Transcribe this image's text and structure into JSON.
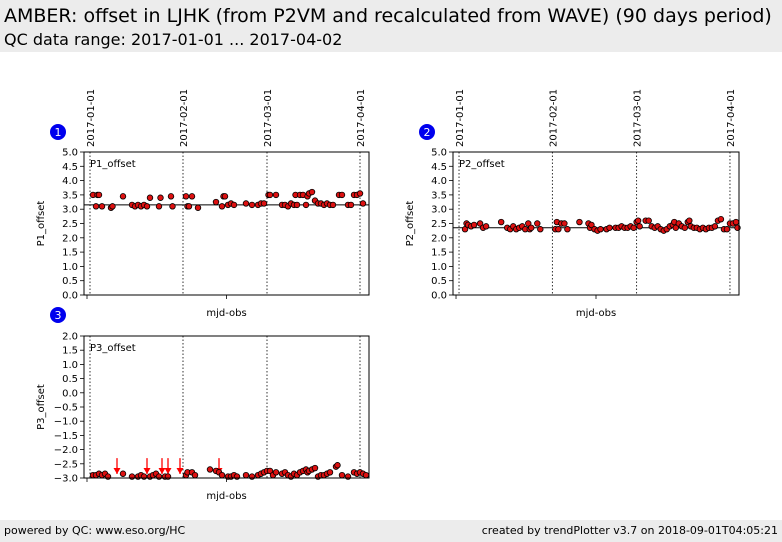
{
  "header": {
    "title": "AMBER: offset in LJHK (from P2VM and recalculated from WAVE) (90 days period)",
    "subtitle": "QC data range: 2017-01-01 ... 2017-04-02"
  },
  "footer": {
    "left": "powered by QC: www.eso.org/HC",
    "right": "created by trendPlotter v3.7 on 2018-09-01T04:05:21"
  },
  "colors": {
    "point_fill": "#dd1111",
    "outlier": "#ff0000",
    "badge": "#0000ee"
  },
  "chart_data": [
    {
      "type": "scatter",
      "badge": "1",
      "panel_label": "P1_offset",
      "ylabel": "P1_offset",
      "xlabel": "mjd-obs",
      "ylim": [
        0.0,
        5.0
      ],
      "yticks": [
        "0.0",
        "0.5",
        "1.0",
        "1.5",
        "2.0",
        "2.5",
        "3.0",
        "3.5",
        "4.0",
        "4.5",
        "5.0"
      ],
      "xlim": [
        57752,
        57847
      ],
      "date_lines": [
        {
          "label": "2017-01-01",
          "x": 57754
        },
        {
          "label": "2017-02-01",
          "x": 57785
        },
        {
          "label": "2017-03-01",
          "x": 57813
        },
        {
          "label": "2017-04-01",
          "x": 57844
        }
      ],
      "ref_line": 3.15,
      "points": [
        [
          57755,
          3.5
        ],
        [
          57756,
          3.1
        ],
        [
          57756.5,
          3.5
        ],
        [
          57757,
          3.5
        ],
        [
          57758,
          3.1
        ],
        [
          57761,
          3.05
        ],
        [
          57761.5,
          3.1
        ],
        [
          57765,
          3.45
        ],
        [
          57768,
          3.15
        ],
        [
          57769,
          3.1
        ],
        [
          57770,
          3.15
        ],
        [
          57771,
          3.1
        ],
        [
          57772,
          3.15
        ],
        [
          57773,
          3.1
        ],
        [
          57774,
          3.4
        ],
        [
          57777,
          3.1
        ],
        [
          57777.5,
          3.4
        ],
        [
          57781,
          3.45
        ],
        [
          57781.5,
          3.1
        ],
        [
          57786,
          3.45
        ],
        [
          57786.5,
          3.1
        ],
        [
          57787,
          3.1
        ],
        [
          57788,
          3.45
        ],
        [
          57790,
          3.05
        ],
        [
          57796,
          3.25
        ],
        [
          57798,
          3.1
        ],
        [
          57798.5,
          3.45
        ],
        [
          57799,
          3.45
        ],
        [
          57800,
          3.15
        ],
        [
          57801,
          3.2
        ],
        [
          57802,
          3.15
        ],
        [
          57806,
          3.2
        ],
        [
          57808,
          3.15
        ],
        [
          57810,
          3.15
        ],
        [
          57811,
          3.2
        ],
        [
          57812,
          3.2
        ],
        [
          57813.5,
          3.5
        ],
        [
          57814,
          3.5
        ],
        [
          57816,
          3.5
        ],
        [
          57818,
          3.15
        ],
        [
          57819,
          3.15
        ],
        [
          57820,
          3.1
        ],
        [
          57821,
          3.2
        ],
        [
          57822,
          3.15
        ],
        [
          57822.5,
          3.5
        ],
        [
          57823,
          3.15
        ],
        [
          57824,
          3.5
        ],
        [
          57825,
          3.5
        ],
        [
          57826,
          3.15
        ],
        [
          57826.5,
          3.45
        ],
        [
          57827,
          3.55
        ],
        [
          57828,
          3.6
        ],
        [
          57829,
          3.3
        ],
        [
          57830,
          3.2
        ],
        [
          57831,
          3.2
        ],
        [
          57832,
          3.15
        ],
        [
          57833,
          3.2
        ],
        [
          57834,
          3.15
        ],
        [
          57835,
          3.15
        ],
        [
          57837,
          3.5
        ],
        [
          57838,
          3.5
        ],
        [
          57840,
          3.15
        ],
        [
          57841,
          3.15
        ],
        [
          57842,
          3.5
        ],
        [
          57843,
          3.5
        ],
        [
          57844,
          3.55
        ],
        [
          57845,
          3.2
        ]
      ],
      "outliers": []
    },
    {
      "type": "scatter",
      "badge": "2",
      "panel_label": "P2_offset",
      "ylabel": "P2_offset",
      "xlabel": "mjd-obs",
      "ylim": [
        0.0,
        5.0
      ],
      "yticks": [
        "0.0",
        "0.5",
        "1.0",
        "1.5",
        "2.0",
        "2.5",
        "3.0",
        "3.5",
        "4.0",
        "4.5",
        "5.0"
      ],
      "xlim": [
        57752,
        57847
      ],
      "date_lines": [
        {
          "label": "2017-01-01",
          "x": 57754
        },
        {
          "label": "2017-02-01",
          "x": 57785
        },
        {
          "label": "2017-03-01",
          "x": 57813
        },
        {
          "label": "2017-04-01",
          "x": 57844
        }
      ],
      "ref_line": 2.35,
      "points": [
        [
          57756,
          2.3
        ],
        [
          57756.5,
          2.5
        ],
        [
          57757,
          2.45
        ],
        [
          57758,
          2.4
        ],
        [
          57759,
          2.45
        ],
        [
          57761,
          2.5
        ],
        [
          57762,
          2.35
        ],
        [
          57763,
          2.4
        ],
        [
          57768,
          2.55
        ],
        [
          57770,
          2.35
        ],
        [
          57771,
          2.3
        ],
        [
          57772,
          2.4
        ],
        [
          57773,
          2.3
        ],
        [
          57774,
          2.35
        ],
        [
          57775,
          2.4
        ],
        [
          57776,
          2.3
        ],
        [
          57777,
          2.5
        ],
        [
          57777.5,
          2.3
        ],
        [
          57778,
          2.35
        ],
        [
          57780,
          2.5
        ],
        [
          57781,
          2.3
        ],
        [
          57786,
          2.3
        ],
        [
          57786.5,
          2.55
        ],
        [
          57787,
          2.3
        ],
        [
          57788,
          2.5
        ],
        [
          57789,
          2.5
        ],
        [
          57790,
          2.3
        ],
        [
          57794,
          2.55
        ],
        [
          57797,
          2.5
        ],
        [
          57797.5,
          2.35
        ],
        [
          57798,
          2.45
        ],
        [
          57799,
          2.3
        ],
        [
          57800,
          2.25
        ],
        [
          57801,
          2.3
        ],
        [
          57803,
          2.3
        ],
        [
          57804,
          2.35
        ],
        [
          57806,
          2.35
        ],
        [
          57807,
          2.35
        ],
        [
          57808,
          2.4
        ],
        [
          57809,
          2.35
        ],
        [
          57810,
          2.35
        ],
        [
          57811,
          2.4
        ],
        [
          57812,
          2.35
        ],
        [
          57813,
          2.55
        ],
        [
          57813.5,
          2.6
        ],
        [
          57814,
          2.4
        ],
        [
          57816,
          2.6
        ],
        [
          57817,
          2.6
        ],
        [
          57818,
          2.4
        ],
        [
          57819,
          2.35
        ],
        [
          57820,
          2.4
        ],
        [
          57821,
          2.3
        ],
        [
          57822,
          2.25
        ],
        [
          57823,
          2.3
        ],
        [
          57824,
          2.4
        ],
        [
          57825,
          2.45
        ],
        [
          57825.5,
          2.55
        ],
        [
          57826,
          2.35
        ],
        [
          57827,
          2.5
        ],
        [
          57828,
          2.4
        ],
        [
          57829,
          2.35
        ],
        [
          57830,
          2.55
        ],
        [
          57830.5,
          2.6
        ],
        [
          57831,
          2.4
        ],
        [
          57832,
          2.35
        ],
        [
          57833,
          2.35
        ],
        [
          57834,
          2.3
        ],
        [
          57835,
          2.35
        ],
        [
          57836,
          2.3
        ],
        [
          57837,
          2.35
        ],
        [
          57838,
          2.35
        ],
        [
          57839,
          2.4
        ],
        [
          57840,
          2.6
        ],
        [
          57841,
          2.65
        ],
        [
          57842,
          2.3
        ],
        [
          57843,
          2.3
        ],
        [
          57844,
          2.5
        ],
        [
          57845,
          2.5
        ],
        [
          57846,
          2.55
        ],
        [
          57846.5,
          2.35
        ]
      ],
      "outliers": []
    },
    {
      "type": "scatter",
      "badge": "3",
      "panel_label": "P3_offset",
      "ylabel": "P3_offset",
      "xlabel": "mjd-obs",
      "ylim": [
        -3.0,
        2.0
      ],
      "yticks": [
        "−3.0",
        "−2.5",
        "−2.0",
        "−1.5",
        "−1.0",
        "−0.5",
        "0.0",
        "0.5",
        "1.0",
        "1.5",
        "2.0"
      ],
      "xlim": [
        57752,
        57847
      ],
      "date_lines": [
        {
          "label": "2017-01-01",
          "x": 57754
        },
        {
          "label": "2017-02-01",
          "x": 57785
        },
        {
          "label": "2017-03-01",
          "x": 57813
        },
        {
          "label": "2017-04-01",
          "x": 57844
        }
      ],
      "ref_line": null,
      "points": [
        [
          57755,
          -2.9
        ],
        [
          57756,
          -2.9
        ],
        [
          57757,
          -2.85
        ],
        [
          57758,
          -2.9
        ],
        [
          57759,
          -2.85
        ],
        [
          57760,
          -2.95
        ],
        [
          57765,
          -2.85
        ],
        [
          57768,
          -2.95
        ],
        [
          57770,
          -2.95
        ],
        [
          57771,
          -2.9
        ],
        [
          57772,
          -2.95
        ],
        [
          57774,
          -2.95
        ],
        [
          57775,
          -2.9
        ],
        [
          57776,
          -2.85
        ],
        [
          57777,
          -2.95
        ],
        [
          57779,
          -2.95
        ],
        [
          57780,
          -2.95
        ],
        [
          57786,
          -2.9
        ],
        [
          57786.5,
          -2.8
        ],
        [
          57788,
          -2.8
        ],
        [
          57789,
          -2.9
        ],
        [
          57794,
          -2.7
        ],
        [
          57796,
          -2.75
        ],
        [
          57797,
          -2.8
        ],
        [
          57798,
          -2.9
        ],
        [
          57800,
          -2.95
        ],
        [
          57801,
          -2.95
        ],
        [
          57802,
          -2.9
        ],
        [
          57803,
          -2.95
        ],
        [
          57806,
          -2.9
        ],
        [
          57808,
          -2.95
        ],
        [
          57810,
          -2.9
        ],
        [
          57811,
          -2.85
        ],
        [
          57812,
          -2.8
        ],
        [
          57813,
          -2.75
        ],
        [
          57814,
          -2.75
        ],
        [
          57815,
          -2.9
        ],
        [
          57816,
          -2.8
        ],
        [
          57818,
          -2.85
        ],
        [
          57819,
          -2.8
        ],
        [
          57820,
          -2.9
        ],
        [
          57821,
          -2.95
        ],
        [
          57822,
          -2.85
        ],
        [
          57823,
          -2.9
        ],
        [
          57824,
          -2.8
        ],
        [
          57825,
          -2.75
        ],
        [
          57826,
          -2.7
        ],
        [
          57826.5,
          -2.8
        ],
        [
          57827,
          -2.75
        ],
        [
          57828,
          -2.7
        ],
        [
          57829,
          -2.65
        ],
        [
          57830,
          -2.95
        ],
        [
          57831,
          -2.9
        ],
        [
          57832,
          -2.9
        ],
        [
          57833,
          -2.85
        ],
        [
          57834,
          -2.8
        ],
        [
          57836,
          -2.6
        ],
        [
          57836.5,
          -2.55
        ],
        [
          57838,
          -2.9
        ],
        [
          57840,
          -2.95
        ],
        [
          57842,
          -2.8
        ],
        [
          57843,
          -2.85
        ],
        [
          57844,
          -2.8
        ],
        [
          57845,
          -2.85
        ],
        [
          57846,
          -2.9
        ]
      ],
      "outliers": [
        [
          57763,
          -2.3
        ],
        [
          57773,
          -2.3
        ],
        [
          57778,
          -2.3
        ],
        [
          57780,
          -2.3
        ],
        [
          57784,
          -2.3
        ],
        [
          57797,
          -2.3
        ]
      ]
    }
  ]
}
